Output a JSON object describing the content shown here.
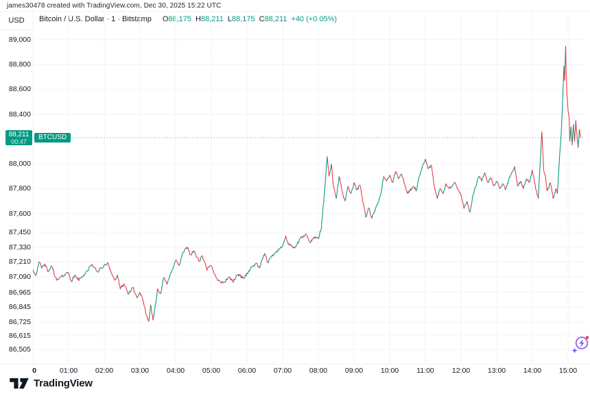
{
  "attribution": "james30478 created with TradingView.com, Dec 30, 2025 15:22 UTC",
  "price_scale_currency": "USD",
  "legend": {
    "symbol_title": "Bitcoin / U.S. Dollar · 1 · Bitstamp",
    "ohlc": [
      {
        "label": "O",
        "value": "88,175"
      },
      {
        "label": "H",
        "value": "88,211"
      },
      {
        "label": "L",
        "value": "88,175"
      },
      {
        "label": "C",
        "value": "88,211"
      }
    ],
    "change": "+40 (+0.05%)"
  },
  "price_label": {
    "price": "88,211",
    "countdown": "00:47",
    "symbol_badge": "BTCUSD"
  },
  "footer": {
    "brand": "TradingView"
  },
  "colors": {
    "up": "#089981",
    "down": "#f23645",
    "badge": "#089981",
    "grid": "#f1f3f8",
    "text": "#131722",
    "current_price_line": "#089981",
    "flash_purple": "#8f5ae8",
    "flash_star": "#7c4dff",
    "flash_dot": "#f23645"
  },
  "chart_data": {
    "type": "candlestick",
    "symbol": "BTCUSD",
    "title": "Bitcoin / U.S. Dollar",
    "interval": "1 minute",
    "exchange": "Bitstamp",
    "current_price": 88211,
    "session_open": 87150,
    "session_high": 88950,
    "session_low": 86725,
    "last_bar_ohlc": {
      "open": 88175,
      "high": 88211,
      "low": 88175,
      "close": 88211
    },
    "ylim_anchor": {
      "price_top": 89000,
      "price_bottom": 86505
    },
    "y_ticks": [
      {
        "label": "89,000",
        "price": 89000
      },
      {
        "label": "88,800",
        "price": 88800
      },
      {
        "label": "88,600",
        "price": 88600
      },
      {
        "label": "88,400",
        "price": 88400
      },
      {
        "label": "88,000",
        "price": 88000
      },
      {
        "label": "87,800",
        "price": 87800
      },
      {
        "label": "87,600",
        "price": 87600
      },
      {
        "label": "87,450",
        "price": 87450
      },
      {
        "label": "87,330",
        "price": 87330
      },
      {
        "label": "87,210",
        "price": 87210
      },
      {
        "label": "87,090",
        "price": 87090
      },
      {
        "label": "86,965",
        "price": 86965
      },
      {
        "label": "86,845",
        "price": 86845
      },
      {
        "label": "86,725",
        "price": 86725
      },
      {
        "label": "86,615",
        "price": 86615
      },
      {
        "label": "86,505",
        "price": 86505
      }
    ],
    "x_ticks": [
      {
        "label": "0",
        "hour": 0,
        "bold": true
      },
      {
        "label": "01:00",
        "hour": 1
      },
      {
        "label": "02:00",
        "hour": 2
      },
      {
        "label": "03:00",
        "hour": 3
      },
      {
        "label": "04:00",
        "hour": 4
      },
      {
        "label": "05:00",
        "hour": 5
      },
      {
        "label": "06:00",
        "hour": 6
      },
      {
        "label": "07:00",
        "hour": 7
      },
      {
        "label": "08:00",
        "hour": 8
      },
      {
        "label": "09:00",
        "hour": 9
      },
      {
        "label": "10:00",
        "hour": 10
      },
      {
        "label": "11:00",
        "hour": 11
      },
      {
        "label": "12:00",
        "hour": 12
      },
      {
        "label": "13:00",
        "hour": 13
      },
      {
        "label": "14:00",
        "hour": 14
      },
      {
        "label": "15:00",
        "hour": 15
      }
    ],
    "points_format": "[minute_of_day, price_usd]",
    "points": [
      [
        0,
        87150
      ],
      [
        5,
        87100
      ],
      [
        10,
        87210
      ],
      [
        15,
        87160
      ],
      [
        20,
        87195
      ],
      [
        25,
        87130
      ],
      [
        32,
        87175
      ],
      [
        40,
        87060
      ],
      [
        48,
        87090
      ],
      [
        55,
        87115
      ],
      [
        60,
        87125
      ],
      [
        65,
        87050
      ],
      [
        70,
        87100
      ],
      [
        78,
        87065
      ],
      [
        88,
        87120
      ],
      [
        100,
        87190
      ],
      [
        108,
        87130
      ],
      [
        115,
        87160
      ],
      [
        122,
        87185
      ],
      [
        126,
        87205
      ],
      [
        133,
        87110
      ],
      [
        138,
        87060
      ],
      [
        142,
        87105
      ],
      [
        147,
        86990
      ],
      [
        153,
        87035
      ],
      [
        160,
        86950
      ],
      [
        168,
        87005
      ],
      [
        175,
        86920
      ],
      [
        180,
        86965
      ],
      [
        185,
        86900
      ],
      [
        190,
        86790
      ],
      [
        195,
        86730
      ],
      [
        198,
        86865
      ],
      [
        202,
        86740
      ],
      [
        210,
        86995
      ],
      [
        215,
        86955
      ],
      [
        220,
        87085
      ],
      [
        226,
        87030
      ],
      [
        232,
        87120
      ],
      [
        240,
        87225
      ],
      [
        246,
        87180
      ],
      [
        252,
        87280
      ],
      [
        260,
        87330
      ],
      [
        265,
        87265
      ],
      [
        270,
        87300
      ],
      [
        280,
        87215
      ],
      [
        285,
        87260
      ],
      [
        292,
        87150
      ],
      [
        300,
        87180
      ],
      [
        305,
        87115
      ],
      [
        312,
        87060
      ],
      [
        320,
        87040
      ],
      [
        330,
        87090
      ],
      [
        336,
        87050
      ],
      [
        345,
        87110
      ],
      [
        355,
        87080
      ],
      [
        365,
        87150
      ],
      [
        375,
        87200
      ],
      [
        381,
        87160
      ],
      [
        390,
        87280
      ],
      [
        395,
        87205
      ],
      [
        400,
        87245
      ],
      [
        410,
        87300
      ],
      [
        420,
        87335
      ],
      [
        425,
        87420
      ],
      [
        430,
        87350
      ],
      [
        440,
        87320
      ],
      [
        450,
        87400
      ],
      [
        460,
        87430
      ],
      [
        466,
        87370
      ],
      [
        475,
        87415
      ],
      [
        480,
        87395
      ],
      [
        485,
        87480
      ],
      [
        490,
        87750
      ],
      [
        495,
        88060
      ],
      [
        498,
        87900
      ],
      [
        502,
        88000
      ],
      [
        505,
        87830
      ],
      [
        510,
        87720
      ],
      [
        515,
        87900
      ],
      [
        520,
        87780
      ],
      [
        525,
        87700
      ],
      [
        530,
        87820
      ],
      [
        535,
        87760
      ],
      [
        540,
        87850
      ],
      [
        545,
        87790
      ],
      [
        550,
        87830
      ],
      [
        560,
        87570
      ],
      [
        565,
        87645
      ],
      [
        570,
        87560
      ],
      [
        580,
        87680
      ],
      [
        585,
        87755
      ],
      [
        590,
        87900
      ],
      [
        595,
        87860
      ],
      [
        600,
        87910
      ],
      [
        605,
        87850
      ],
      [
        610,
        87940
      ],
      [
        615,
        87880
      ],
      [
        620,
        87920
      ],
      [
        630,
        87760
      ],
      [
        640,
        87820
      ],
      [
        645,
        87785
      ],
      [
        650,
        87900
      ],
      [
        660,
        88040
      ],
      [
        665,
        87960
      ],
      [
        670,
        87990
      ],
      [
        675,
        87820
      ],
      [
        680,
        87720
      ],
      [
        685,
        87800
      ],
      [
        690,
        87760
      ],
      [
        695,
        87840
      ],
      [
        700,
        87800
      ],
      [
        710,
        87850
      ],
      [
        715,
        87790
      ],
      [
        720,
        87750
      ],
      [
        725,
        87640
      ],
      [
        730,
        87700
      ],
      [
        735,
        87610
      ],
      [
        740,
        87750
      ],
      [
        745,
        87820
      ],
      [
        750,
        87900
      ],
      [
        755,
        87860
      ],
      [
        760,
        87930
      ],
      [
        765,
        87850
      ],
      [
        770,
        87890
      ],
      [
        775,
        87820
      ],
      [
        780,
        87860
      ],
      [
        785,
        87800
      ],
      [
        790,
        87840
      ],
      [
        795,
        87790
      ],
      [
        800,
        87870
      ],
      [
        810,
        87980
      ],
      [
        815,
        87820
      ],
      [
        820,
        87860
      ],
      [
        825,
        87800
      ],
      [
        830,
        87880
      ],
      [
        835,
        87850
      ],
      [
        840,
        87950
      ],
      [
        845,
        87820
      ],
      [
        850,
        87720
      ],
      [
        853,
        88000
      ],
      [
        856,
        88260
      ],
      [
        859,
        87950
      ],
      [
        862,
        87900
      ],
      [
        865,
        87780
      ],
      [
        870,
        87850
      ],
      [
        875,
        87720
      ],
      [
        880,
        87800
      ],
      [
        882,
        87760
      ],
      [
        885,
        88000
      ],
      [
        888,
        88200
      ],
      [
        890,
        88400
      ],
      [
        892,
        88650
      ],
      [
        893,
        88790
      ],
      [
        894,
        88670
      ],
      [
        896,
        88950
      ],
      [
        897,
        88700
      ],
      [
        898,
        88560
      ],
      [
        900,
        88430
      ],
      [
        902,
        88360
      ],
      [
        903,
        88180
      ],
      [
        905,
        88300
      ],
      [
        907,
        88150
      ],
      [
        909,
        88320
      ],
      [
        911,
        88180
      ],
      [
        913,
        88350
      ],
      [
        915,
        88230
      ],
      [
        917,
        88130
      ],
      [
        919,
        88280
      ],
      [
        921,
        88211
      ]
    ]
  }
}
